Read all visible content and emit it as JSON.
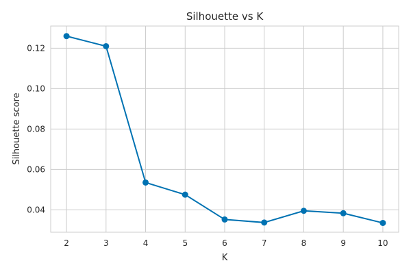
{
  "chart_data": {
    "type": "line",
    "title": "Silhouette vs K",
    "xlabel": "K",
    "ylabel": "Silhouette score",
    "x": [
      2,
      3,
      4,
      5,
      6,
      7,
      8,
      9,
      10
    ],
    "series": [
      {
        "values": [
          0.126,
          0.121,
          0.0535,
          0.0475,
          0.0352,
          0.0337,
          0.0395,
          0.0383,
          0.0335
        ],
        "color": "#0072B2"
      }
    ],
    "xticks": [
      "2",
      "3",
      "4",
      "5",
      "6",
      "7",
      "8",
      "9",
      "10"
    ],
    "yticks": [
      "0.04",
      "0.06",
      "0.08",
      "0.10",
      "0.12"
    ],
    "ytick_values": [
      0.04,
      0.06,
      0.08,
      0.1,
      0.12
    ],
    "xlim": [
      1.6,
      10.4
    ],
    "ylim": [
      0.0289,
      0.131
    ],
    "grid": true,
    "markers": true
  }
}
